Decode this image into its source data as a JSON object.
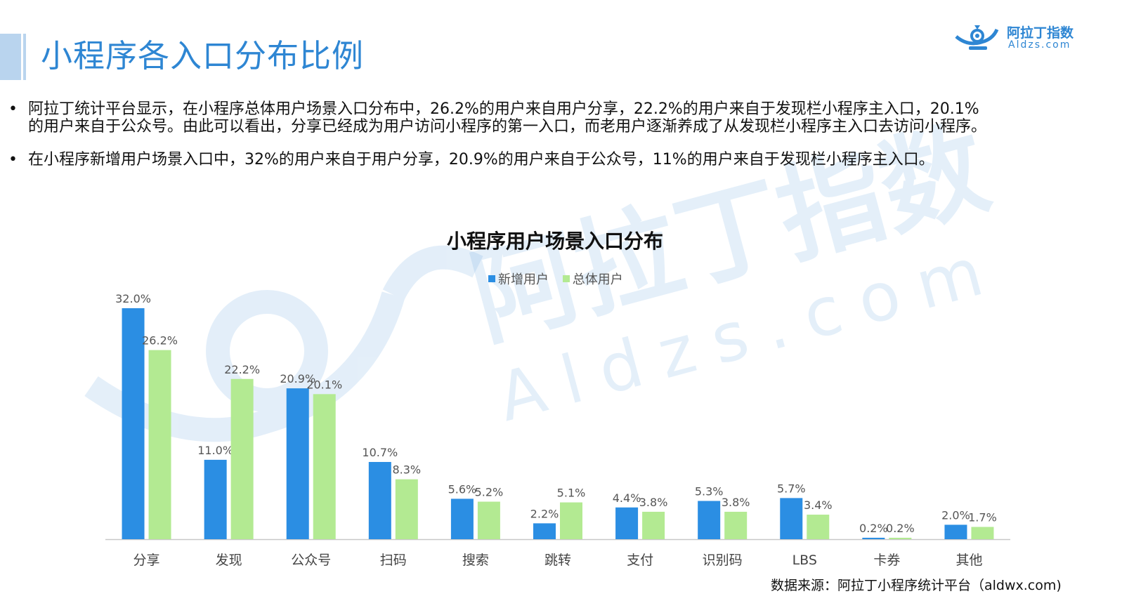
{
  "header": {
    "title": "小程序各入口分布比例",
    "logo_name": "阿拉丁指数",
    "logo_domain": "Aldzs.com",
    "accent_color": "#2e86d3"
  },
  "bullets": [
    {
      "dot": "•",
      "text": "阿拉丁统计平台显示，在小程序总体用户场景入口分布中，26.2%的用户来自用户分享，22.2%的用户来自于发现栏小程序主入口，20.1%的用户来自于公众号。由此可以看出，分享已经成为用户访问小程序的第一入口，而老用户逐渐养成了从发现栏小程序主入口去访问小程序。"
    },
    {
      "dot": "•",
      "text": "在小程序新增用户场景入口中，32%的用户来自于用户分享，20.9%的用户来自于公众号，11%的用户来自于发现栏小程序主入口。"
    }
  ],
  "watermark": {
    "brand": "阿拉丁指数",
    "domain": "Aldzs.com",
    "icon": "lamp-logo-icon"
  },
  "chart_data": {
    "type": "bar",
    "title": "小程序用户场景入口分布",
    "xlabel": "",
    "ylabel": "",
    "ylim": [
      0,
      32
    ],
    "grid": false,
    "legend_position": "top-center",
    "categories": [
      "分享",
      "发现",
      "公众号",
      "扫码",
      "搜索",
      "跳转",
      "支付",
      "识别码",
      "LBS",
      "卡券",
      "其他"
    ],
    "series": [
      {
        "name": "新增用户",
        "color": "#2b8ee3",
        "values": [
          32.0,
          11.0,
          20.9,
          10.7,
          5.6,
          2.2,
          4.4,
          5.3,
          5.7,
          0.2,
          2.0
        ],
        "labels": [
          "32.0%",
          "11.0%",
          "20.9%",
          "10.7%",
          "5.6%",
          "2.2%",
          "4.4%",
          "5.3%",
          "5.7%",
          "0.2%",
          "2.0%"
        ]
      },
      {
        "name": "总体用户",
        "color": "#b3ea92",
        "values": [
          26.2,
          22.2,
          20.1,
          8.3,
          5.2,
          5.1,
          3.8,
          3.8,
          3.4,
          0.2,
          1.7
        ],
        "labels": [
          "26.2%",
          "22.2%",
          "20.1%",
          "8.3%",
          "5.2%",
          "5.1%",
          "3.8%",
          "3.8%",
          "3.4%",
          "0.2%",
          "1.7%"
        ]
      }
    ]
  },
  "source": "数据来源：阿拉丁小程序统计平台（aldwx.com)"
}
